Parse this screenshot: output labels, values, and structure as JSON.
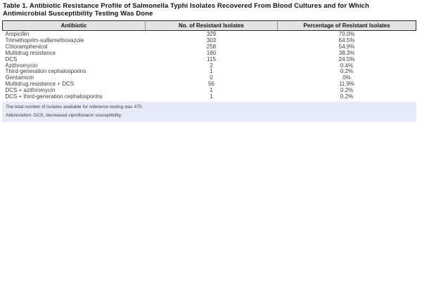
{
  "title": "Table 1. Antibiotic Resistance Profile of Salmonella Typhi Isolates Recovered From Blood Cultures and for Which Antimicrobial Susceptibility Testing Was Done",
  "table": {
    "columns": [
      "Antibiotic",
      "No. of Resistant Isolates",
      "Percentage of Resistant Isolates"
    ],
    "rows": [
      [
        "Ampicillin",
        "329",
        "70.0%"
      ],
      [
        "Trimethoprim-sulfamethoxazole",
        "303",
        "64.5%"
      ],
      [
        "Chloramphenicol",
        "258",
        "54.9%"
      ],
      [
        "Multidrug resistance",
        "180",
        "38.3%"
      ],
      [
        "DCS",
        "115",
        "24.5%"
      ],
      [
        "Azithromycin",
        "2",
        "0.4%"
      ],
      [
        "Third-generation cephalosporins",
        "1",
        "0.2%"
      ],
      [
        "Gentamicin",
        "0",
        "0%"
      ],
      [
        "Multidrug resistance + DCS",
        "56",
        "11.9%"
      ],
      [
        "DCS + azithromycin",
        "1",
        "0.2%"
      ],
      [
        "DCS + third-generation cephalosporins",
        "1",
        "0.2%"
      ]
    ],
    "footnotes": [
      "The total number of isolates available for reference testing was 470.",
      "Abbreviation: DCS, decreased ciprofloxacin susceptibility."
    ]
  },
  "colors": {
    "header_bg": "#e4e4e4",
    "footnote_bg": "#e7ebf8",
    "body_text": "#3d3d3d",
    "border_dark": "#2a2a2a"
  }
}
